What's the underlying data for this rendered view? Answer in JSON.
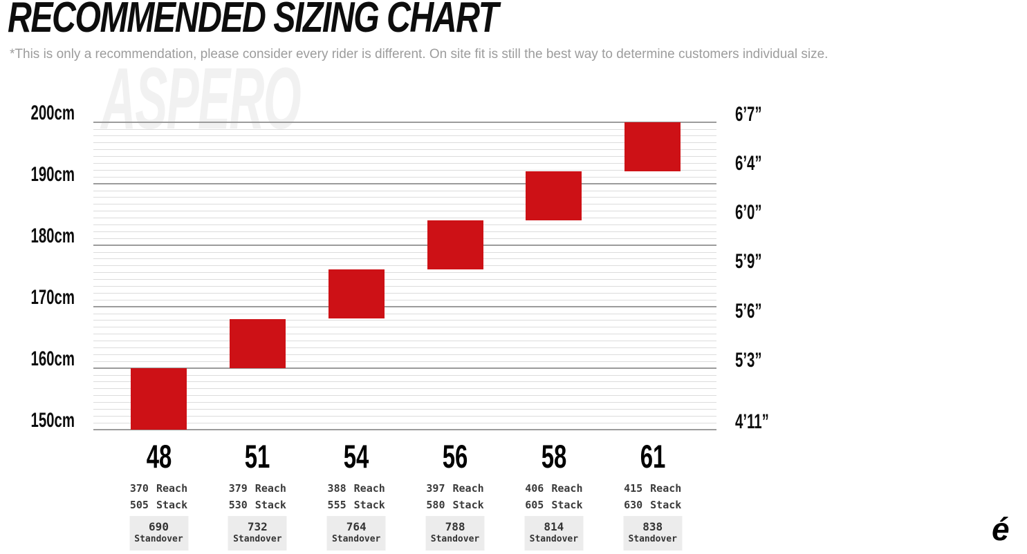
{
  "header": {
    "title": "RECOMMENDED SIZING CHART",
    "subtitle": "*This is only a recommendation, please consider every rider is different. On site fit is still the best way to determine customers individual size."
  },
  "watermark": "ASPERO",
  "logo_glyph": "é",
  "colors": {
    "bar": "#cd1116",
    "major_grid": "#9b9b9b",
    "minor_grid": "#dcdcdc",
    "standover_bg": "#ececec",
    "subtitle_text": "#9c9c9c",
    "spec_text": "#3a3a3a"
  },
  "chart_data": {
    "type": "bar",
    "title": "RECOMMENDED SIZING CHART",
    "orientation": "vertical-range-bars",
    "ylim": [
      150,
      200
    ],
    "y_unit": "cm rider height",
    "grid": {
      "major_step_cm": 10,
      "minor_divisions_per_major": 9,
      "gridlines_on": true
    },
    "y_axis_left": {
      "ticks": [
        {
          "label": "200cm",
          "cm": 200
        },
        {
          "label": "190cm",
          "cm": 190
        },
        {
          "label": "180cm",
          "cm": 180
        },
        {
          "label": "170cm",
          "cm": 170
        },
        {
          "label": "160cm",
          "cm": 160
        },
        {
          "label": "150cm",
          "cm": 150
        }
      ]
    },
    "y_axis_right": {
      "ticks": [
        {
          "label": "6’7”",
          "cm": 200
        },
        {
          "label": "6’4”",
          "cm": 192
        },
        {
          "label": "6’0”",
          "cm": 184
        },
        {
          "label": "5’9”",
          "cm": 176
        },
        {
          "label": "5’6”",
          "cm": 168
        },
        {
          "label": "5’3”",
          "cm": 160
        },
        {
          "label": "4’11”",
          "cm": 150
        }
      ]
    },
    "labels": {
      "reach": "Reach",
      "stack": "Stack",
      "standover": "Standover"
    },
    "sizes": [
      {
        "size": "48",
        "height_min_cm": 150,
        "height_max_cm": 160,
        "reach": "370",
        "stack": "505",
        "standover": "690"
      },
      {
        "size": "51",
        "height_min_cm": 160,
        "height_max_cm": 168,
        "reach": "379",
        "stack": "530",
        "standover": "732"
      },
      {
        "size": "54",
        "height_min_cm": 168,
        "height_max_cm": 176,
        "reach": "388",
        "stack": "555",
        "standover": "764"
      },
      {
        "size": "56",
        "height_min_cm": 176,
        "height_max_cm": 184,
        "reach": "397",
        "stack": "580",
        "standover": "788"
      },
      {
        "size": "58",
        "height_min_cm": 184,
        "height_max_cm": 192,
        "reach": "406",
        "stack": "605",
        "standover": "814"
      },
      {
        "size": "61",
        "height_min_cm": 192,
        "height_max_cm": 200,
        "reach": "415",
        "stack": "630",
        "standover": "838"
      }
    ]
  }
}
